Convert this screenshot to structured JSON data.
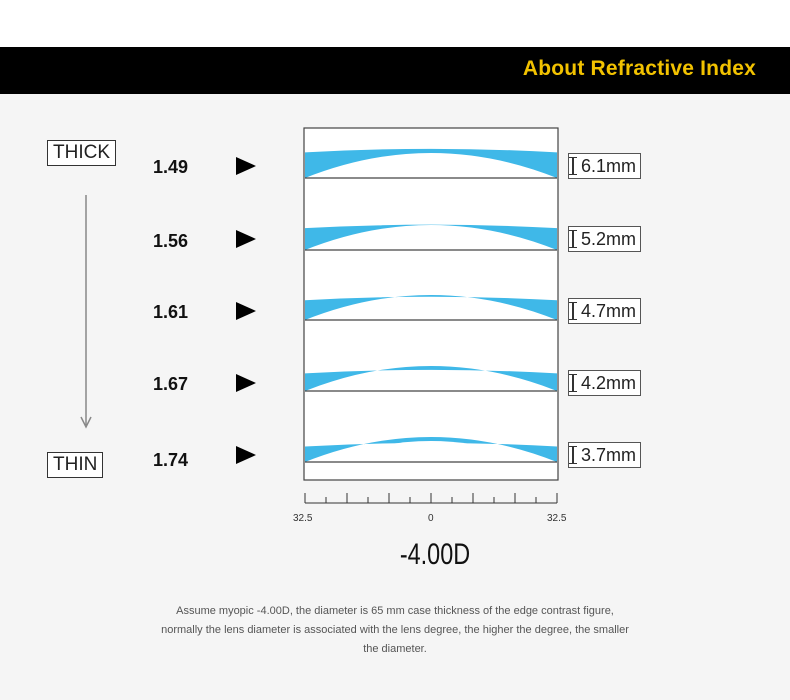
{
  "header": {
    "title": "About Refractive Index",
    "title_color": "#f2c200",
    "bar_color": "#000000"
  },
  "legend": {
    "thick_label": "THICK",
    "thin_label": "THIN"
  },
  "lenses": [
    {
      "index": "1.49",
      "edge_thickness": "6.1mm",
      "edge_mm": 6.1
    },
    {
      "index": "1.56",
      "edge_thickness": "5.2mm",
      "edge_mm": 5.2
    },
    {
      "index": "1.61",
      "edge_thickness": "4.7mm",
      "edge_mm": 4.7
    },
    {
      "index": "1.67",
      "edge_thickness": "4.2mm",
      "edge_mm": 4.2
    },
    {
      "index": "1.74",
      "edge_thickness": "3.7mm",
      "edge_mm": 3.7
    }
  ],
  "lens_color": "#3fb8e8",
  "scale": {
    "left": "32.5",
    "center": "0",
    "right": "32.5"
  },
  "diopter": "-4.00D",
  "note": {
    "line1": "Assume myopic -4.00D, the diameter is 65 mm case thickness of the edge contrast figure,",
    "line2": "normally the lens diameter is associated with the lens degree, the higher the degree, the smaller",
    "line3": "the diameter."
  }
}
